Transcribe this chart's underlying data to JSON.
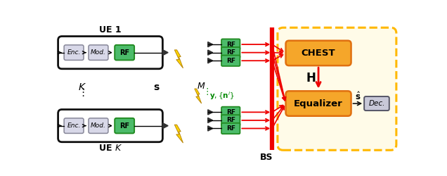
{
  "fig_width": 6.36,
  "fig_height": 2.5,
  "dpi": 100,
  "bg_color": "#ffffff",
  "ue1_label": "UE 1",
  "uek_label": "UE $K$",
  "bs_label": "BS",
  "enc_label": "Enc.",
  "mod_label": "Mod.",
  "rf_label": "RF",
  "chest_label": "CHEST",
  "equalizer_label": "Equalizer",
  "dec_label": "Dec.",
  "orange_fill": "#F5A62A",
  "orange_edge": "#E07010",
  "green_fill": "#4CBB6A",
  "green_edge": "#228B22",
  "gray_fill": "#D8D8E8",
  "gray_edge": "#888899",
  "black": "#111111",
  "red": "#EE0000",
  "bs_bg_fill": "#FFFBE8",
  "bs_bg_edge": "#FFB800",
  "ue_box_fill": "#ffffff",
  "ue_box_edge": "#111111",
  "dec_fill": "#C8C8D8",
  "dec_edge": "#555566",
  "lightning_fill": "#FFD700",
  "lightning_edge": "#B8860B"
}
